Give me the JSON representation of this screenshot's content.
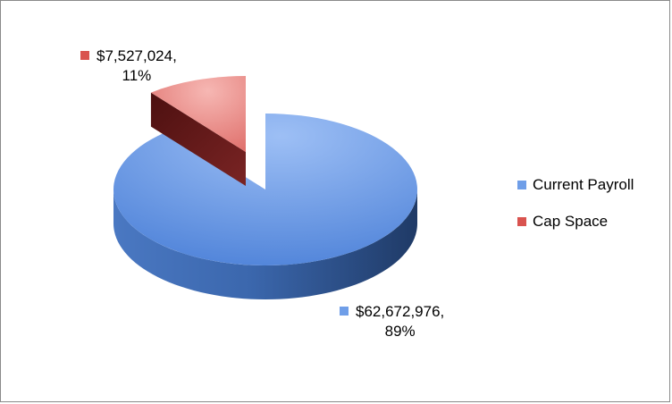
{
  "chart_data": {
    "type": "pie",
    "title": "",
    "slices": [
      {
        "name": "Current Payroll",
        "value": 62672976,
        "label_value": "$62,672,976,",
        "label_percent": "89%",
        "color": "#5b8ee0"
      },
      {
        "name": "Cap Space",
        "value": 7527024,
        "label_value": "$7,527,024,",
        "label_percent": "11%",
        "color": "#e06666"
      }
    ],
    "exploded": "Cap Space",
    "style": "3d",
    "legend_position": "right"
  },
  "colors": {
    "blue_top_light": "#9dbff5",
    "blue_top": "#5b8ee0",
    "blue_side_light": "#4a78c2",
    "blue_side_dark": "#1f3a66",
    "red_top_light": "#f6b7b3",
    "red_top": "#e06666",
    "red_side": "#6e1b1b",
    "red_swatch": "#d9534f",
    "blue_swatch": "#6f9ee8"
  }
}
